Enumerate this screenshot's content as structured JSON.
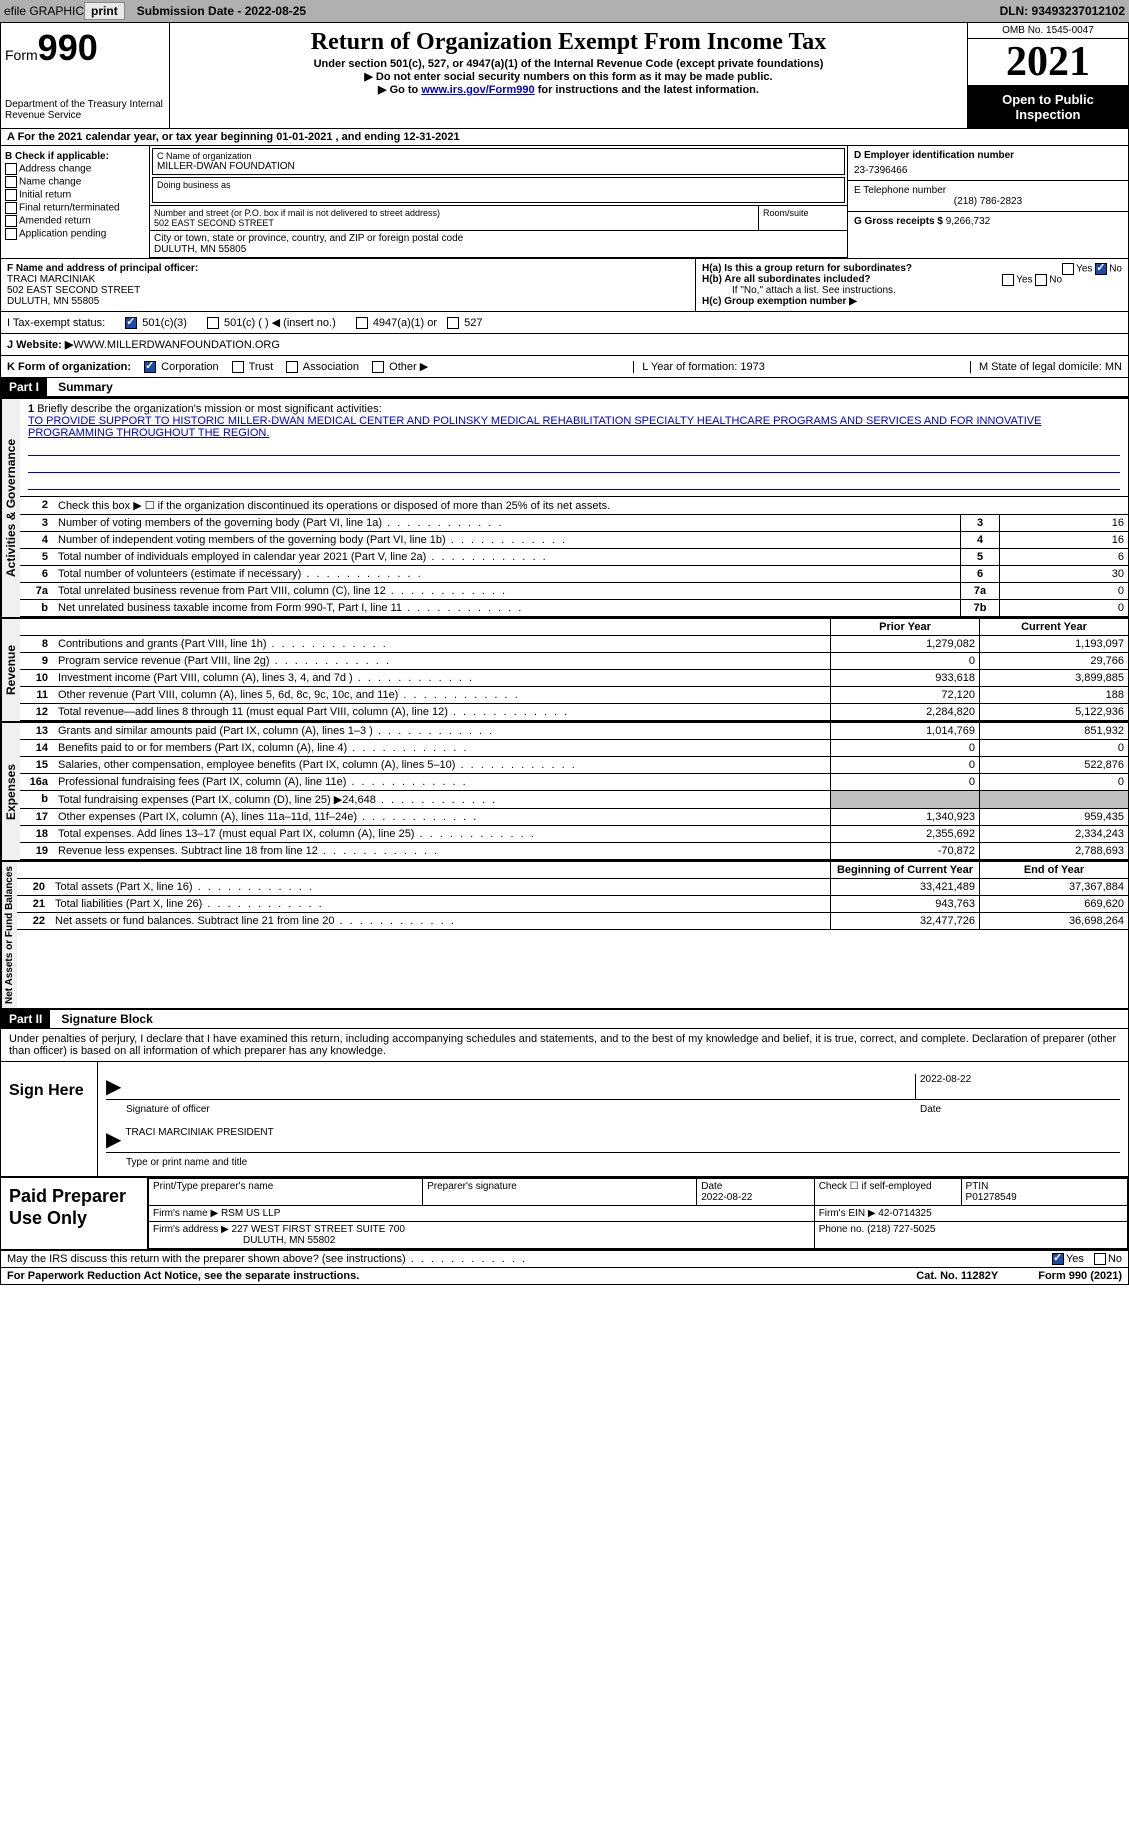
{
  "topbar": {
    "efile_label": "efile GRAPHIC",
    "print_btn": "print",
    "submission_label": "Submission Date - 2022-08-25",
    "dln": "DLN: 93493237012102"
  },
  "header": {
    "form_word": "Form",
    "form_num": "990",
    "dept": "Department of the Treasury Internal Revenue Service",
    "title": "Return of Organization Exempt From Income Tax",
    "subtitle": "Under section 501(c), 527, or 4947(a)(1) of the Internal Revenue Code (except private foundations)",
    "line1": "▶ Do not enter social security numbers on this form as it may be made public.",
    "line2_pre": "▶ Go to ",
    "line2_link": "www.irs.gov/Form990",
    "line2_post": " for instructions and the latest information.",
    "omb": "OMB No. 1545-0047",
    "year": "2021",
    "open": "Open to Public Inspection"
  },
  "row_a": "A For the 2021 calendar year, or tax year beginning 01-01-2021   , and ending 12-31-2021",
  "col_b": {
    "header": "B Check if applicable:",
    "items": [
      "Address change",
      "Name change",
      "Initial return",
      "Final return/terminated",
      "Amended return",
      "Application pending"
    ]
  },
  "org": {
    "name_label": "C Name of organization",
    "name": "MILLER-DWAN FOUNDATION",
    "dba_label": "Doing business as",
    "addr_label": "Number and street (or P.O. box if mail is not delivered to street address)",
    "addr": "502 EAST SECOND STREET",
    "room_label": "Room/suite",
    "city_label": "City or town, state or province, country, and ZIP or foreign postal code",
    "city": "DULUTH, MN  55805"
  },
  "right_box": {
    "d_label": "D Employer identification number",
    "d_val": "23-7396466",
    "e_label": "E Telephone number",
    "e_val": "(218) 786-2823",
    "g_label": "G Gross receipts $ ",
    "g_val": "9,266,732"
  },
  "section_f": {
    "f_label": "F Name and address of principal officer:",
    "f_name": "TRACI MARCINIAK",
    "f_addr1": "502 EAST SECOND STREET",
    "f_addr2": "DULUTH, MN  55805",
    "ha_label": "H(a)  Is this a group return for subordinates?",
    "hb_label": "H(b)  Are all subordinates included?",
    "hb_note": "If \"No,\" attach a list. See instructions.",
    "hc_label": "H(c)  Group exemption number ▶",
    "yes": "Yes",
    "no": "No"
  },
  "row_i": {
    "label": "I   Tax-exempt status:",
    "opts": [
      "501(c)(3)",
      "501(c) (  ) ◀ (insert no.)",
      "4947(a)(1) or",
      "527"
    ]
  },
  "row_j": {
    "label": "J   Website: ▶",
    "val": "  WWW.MILLERDWANFOUNDATION.ORG"
  },
  "row_k": {
    "label": "K Form of organization:",
    "opts": [
      "Corporation",
      "Trust",
      "Association",
      "Other ▶"
    ],
    "l": "L Year of formation: 1973",
    "m": "M State of legal domicile: MN"
  },
  "part1": {
    "header": "Part I",
    "title": "Summary",
    "q1_label": "Briefly describe the organization's mission or most significant activities:",
    "q1_text": "TO PROVIDE SUPPORT TO HISTORIC MILLER-DWAN MEDICAL CENTER AND POLINSKY MEDICAL REHABILITATION SPECIALTY HEALTHCARE PROGRAMS AND SERVICES AND FOR INNOVATIVE PROGRAMMING THROUGHOUT THE REGION.",
    "q2": "Check this box ▶ ☐ if the organization discontinued its operations or disposed of more than 25% of its net assets.",
    "vert_labels": {
      "ag": "Activities & Governance",
      "rev": "Revenue",
      "exp": "Expenses",
      "net": "Net Assets or Fund Balances"
    },
    "gov_rows": [
      {
        "n": "3",
        "desc": "Number of voting members of the governing body (Part VI, line 1a)",
        "box": "3",
        "val": "16"
      },
      {
        "n": "4",
        "desc": "Number of independent voting members of the governing body (Part VI, line 1b)",
        "box": "4",
        "val": "16"
      },
      {
        "n": "5",
        "desc": "Total number of individuals employed in calendar year 2021 (Part V, line 2a)",
        "box": "5",
        "val": "6"
      },
      {
        "n": "6",
        "desc": "Total number of volunteers (estimate if necessary)",
        "box": "6",
        "val": "30"
      },
      {
        "n": "7a",
        "desc": "Total unrelated business revenue from Part VIII, column (C), line 12",
        "box": "7a",
        "val": "0"
      },
      {
        "n": "b",
        "desc": "Net unrelated business taxable income from Form 990-T, Part I, line 11",
        "box": "7b",
        "val": "0"
      }
    ],
    "col_headers": {
      "prior": "Prior Year",
      "current": "Current Year"
    },
    "rev_rows": [
      {
        "n": "8",
        "desc": "Contributions and grants (Part VIII, line 1h)",
        "prior": "1,279,082",
        "current": "1,193,097"
      },
      {
        "n": "9",
        "desc": "Program service revenue (Part VIII, line 2g)",
        "prior": "0",
        "current": "29,766"
      },
      {
        "n": "10",
        "desc": "Investment income (Part VIII, column (A), lines 3, 4, and 7d )",
        "prior": "933,618",
        "current": "3,899,885"
      },
      {
        "n": "11",
        "desc": "Other revenue (Part VIII, column (A), lines 5, 6d, 8c, 9c, 10c, and 11e)",
        "prior": "72,120",
        "current": "188"
      },
      {
        "n": "12",
        "desc": "Total revenue—add lines 8 through 11 (must equal Part VIII, column (A), line 12)",
        "prior": "2,284,820",
        "current": "5,122,936"
      }
    ],
    "exp_rows": [
      {
        "n": "13",
        "desc": "Grants and similar amounts paid (Part IX, column (A), lines 1–3 )",
        "prior": "1,014,769",
        "current": "851,932"
      },
      {
        "n": "14",
        "desc": "Benefits paid to or for members (Part IX, column (A), line 4)",
        "prior": "0",
        "current": "0"
      },
      {
        "n": "15",
        "desc": "Salaries, other compensation, employee benefits (Part IX, column (A), lines 5–10)",
        "prior": "0",
        "current": "522,876"
      },
      {
        "n": "16a",
        "desc": "Professional fundraising fees (Part IX, column (A), line 11e)",
        "prior": "0",
        "current": "0"
      },
      {
        "n": "b",
        "desc": "Total fundraising expenses (Part IX, column (D), line 25) ▶24,648",
        "prior": "",
        "current": "",
        "shaded": true
      },
      {
        "n": "17",
        "desc": "Other expenses (Part IX, column (A), lines 11a–11d, 11f–24e)",
        "prior": "1,340,923",
        "current": "959,435"
      },
      {
        "n": "18",
        "desc": "Total expenses. Add lines 13–17 (must equal Part IX, column (A), line 25)",
        "prior": "2,355,692",
        "current": "2,334,243"
      },
      {
        "n": "19",
        "desc": "Revenue less expenses. Subtract line 18 from line 12",
        "prior": "-70,872",
        "current": "2,788,693"
      }
    ],
    "net_headers": {
      "prior": "Beginning of Current Year",
      "current": "End of Year"
    },
    "net_rows": [
      {
        "n": "20",
        "desc": "Total assets (Part X, line 16)",
        "prior": "33,421,489",
        "current": "37,367,884"
      },
      {
        "n": "21",
        "desc": "Total liabilities (Part X, line 26)",
        "prior": "943,763",
        "current": "669,620"
      },
      {
        "n": "22",
        "desc": "Net assets or fund balances. Subtract line 21 from line 20",
        "prior": "32,477,726",
        "current": "36,698,264"
      }
    ]
  },
  "part2": {
    "header": "Part II",
    "title": "Signature Block",
    "intro": "Under penalties of perjury, I declare that I have examined this return, including accompanying schedules and statements, and to the best of my knowledge and belief, it is true, correct, and complete. Declaration of preparer (other than officer) is based on all information of which preparer has any knowledge.",
    "sign_here": "Sign Here",
    "sig_officer": "Signature of officer",
    "sig_date": "2022-08-22",
    "date_label": "Date",
    "officer_name": "TRACI MARCINIAK  PRESIDENT",
    "type_label": "Type or print name and title",
    "paid": "Paid Preparer Use Only",
    "prep_name_label": "Print/Type preparer's name",
    "prep_sig_label": "Preparer's signature",
    "prep_date_label": "Date",
    "prep_date": "2022-08-22",
    "check_if": "Check ☐ if self-employed",
    "ptin_label": "PTIN",
    "ptin": "P01278549",
    "firm_name_label": "Firm's name    ▶ ",
    "firm_name": "RSM US LLP",
    "firm_ein_label": "Firm's EIN ▶ ",
    "firm_ein": "42-0714325",
    "firm_addr_label": "Firm's address ▶ ",
    "firm_addr": "227 WEST FIRST STREET SUITE 700",
    "firm_city": "DULUTH, MN  55802",
    "phone_label": "Phone no. ",
    "phone": "(218) 727-5025"
  },
  "footer": {
    "discuss": "May the IRS discuss this return with the preparer shown above? (see instructions)",
    "yes": "Yes",
    "no": "No",
    "paperwork": "For Paperwork Reduction Act Notice, see the separate instructions.",
    "cat": "Cat. No. 11282Y",
    "form": "Form 990 (2021)"
  }
}
